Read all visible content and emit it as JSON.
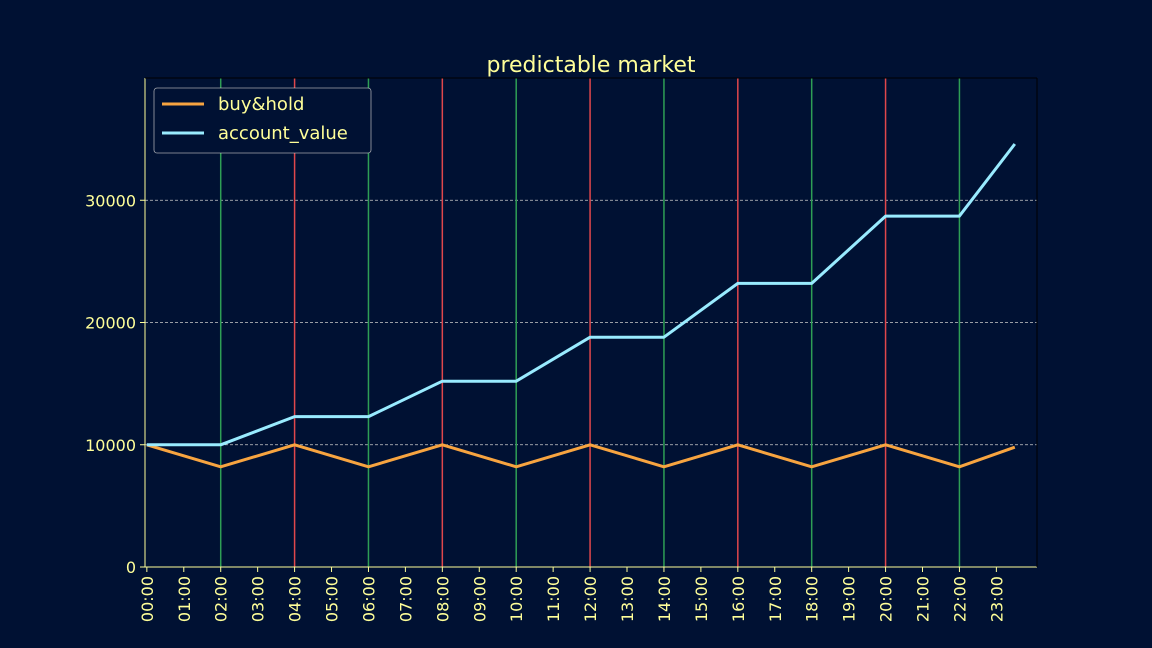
{
  "colors": {
    "background": "#001133",
    "plot_background": "#001133",
    "text": "#ffff99",
    "buy_hold": "#f7a440",
    "account_value": "#99ebff",
    "buy_marker": "#2e9e55",
    "sell_marker": "#e0474c",
    "grid": "#cccccc"
  },
  "chart_data": {
    "type": "line",
    "title": "predictable market",
    "xlabel": "",
    "ylabel": "",
    "x": [
      "00:00",
      "01:00",
      "02:00",
      "03:00",
      "04:00",
      "05:00",
      "06:00",
      "07:00",
      "08:00",
      "09:00",
      "10:00",
      "11:00",
      "12:00",
      "13:00",
      "14:00",
      "15:00",
      "16:00",
      "17:00",
      "18:00",
      "19:00",
      "20:00",
      "21:00",
      "22:00",
      "23:00"
    ],
    "ylim": [
      0,
      40000
    ],
    "yticks": [
      0,
      10000,
      20000,
      30000
    ],
    "grid": "horizontal dashed",
    "legend_position": "top-left",
    "series": [
      {
        "name": "buy&hold",
        "color": "#f7a440",
        "points": [
          {
            "x": "00:00",
            "y": 10000
          },
          {
            "x": "02:00",
            "y": 8200
          },
          {
            "x": "04:00",
            "y": 10000
          },
          {
            "x": "06:00",
            "y": 8200
          },
          {
            "x": "08:00",
            "y": 10000
          },
          {
            "x": "10:00",
            "y": 8200
          },
          {
            "x": "12:00",
            "y": 10000
          },
          {
            "x": "14:00",
            "y": 8200
          },
          {
            "x": "16:00",
            "y": 10000
          },
          {
            "x": "18:00",
            "y": 8200
          },
          {
            "x": "20:00",
            "y": 10000
          },
          {
            "x": "22:00",
            "y": 8200
          },
          {
            "x": "23:30",
            "y": 9800
          }
        ]
      },
      {
        "name": "account_value",
        "color": "#99ebff",
        "points": [
          {
            "x": "00:00",
            "y": 10000
          },
          {
            "x": "02:00",
            "y": 10000
          },
          {
            "x": "04:00",
            "y": 12300
          },
          {
            "x": "06:00",
            "y": 12300
          },
          {
            "x": "08:00",
            "y": 15200
          },
          {
            "x": "10:00",
            "y": 15200
          },
          {
            "x": "12:00",
            "y": 18800
          },
          {
            "x": "14:00",
            "y": 18800
          },
          {
            "x": "16:00",
            "y": 23200
          },
          {
            "x": "18:00",
            "y": 23200
          },
          {
            "x": "20:00",
            "y": 28700
          },
          {
            "x": "22:00",
            "y": 28700
          },
          {
            "x": "23:30",
            "y": 34600
          }
        ]
      }
    ],
    "buy_markers": [
      "02:00",
      "06:00",
      "10:00",
      "14:00",
      "18:00",
      "22:00"
    ],
    "sell_markers": [
      "04:00",
      "08:00",
      "12:00",
      "16:00",
      "20:00"
    ]
  }
}
